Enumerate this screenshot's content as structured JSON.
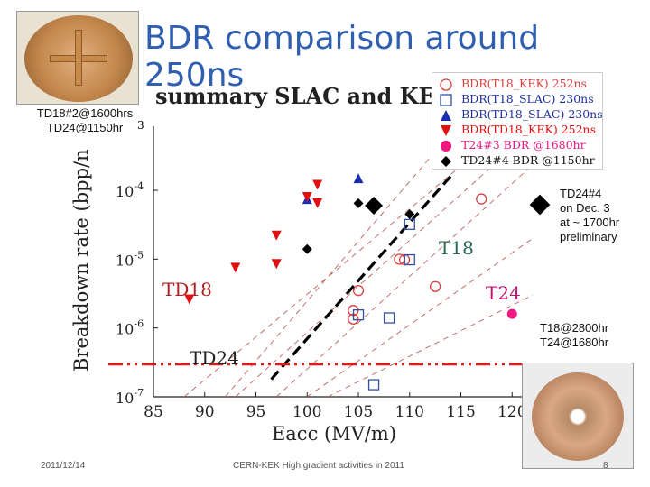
{
  "slide": {
    "title": "BDR comparison around 250ns",
    "chart_heading": "summary SLAC and KEK",
    "heading_fragment": "3",
    "note_left_line1": "TD18#2@1600hrs",
    "note_left_line2": "TD24@1150hr",
    "note_right": [
      "TD24#4",
      "on Dec. 3",
      "at ~ 1700hr",
      "preliminary"
    ],
    "note_bottom_right": [
      "T18@2800hr",
      "T24@1680hr"
    ],
    "footer_date": "2011/12/14",
    "footer_center": "CERN-KEK High gradient activities in 2011",
    "page_number": "8",
    "colors": {
      "title": "#2f5fae",
      "kek_t18": "#d84040",
      "slac_t18": "#3050a0",
      "slac_td18": "#1a2fb0",
      "kek_td18": "#e01010",
      "t24": "#f01880",
      "td24": "#000000",
      "trend": "#c06060",
      "t18_label": "#2a6a50",
      "td18_label": "#b02020",
      "t24_label": "#c01070"
    }
  },
  "chart_data": {
    "type": "scatter",
    "xlabel": "Eacc (MV/m)",
    "ylabel": "Breakdown rate (bpp/n",
    "xlim": [
      85,
      122
    ],
    "ylim_log10": [
      -7,
      -3.2
    ],
    "y_scale": "log",
    "x_ticks": [
      "85",
      "90",
      "95",
      "100",
      "105",
      "110",
      "115",
      "120",
      "1"
    ],
    "y_tick_labels": [
      {
        "base": "10",
        "exp": "-4",
        "log": -4
      },
      {
        "base": "10",
        "exp": "-5",
        "log": -5
      },
      {
        "base": "10",
        "exp": "-6",
        "log": -6
      },
      {
        "base": "10",
        "exp": "-7",
        "log": -7
      }
    ],
    "annotations": {
      "t18": "T18",
      "td18": "TD18",
      "t24": "T24",
      "td24": "TD24"
    },
    "legend_position": "top-right",
    "series": [
      {
        "key": "kek_t18",
        "name": "BDR(T18_KEK) 252ns",
        "marker": "circle-open",
        "points": [
          [
            104.5,
            1.35e-06
          ],
          [
            104.5,
            1.8e-06
          ],
          [
            105,
            3.5e-06
          ],
          [
            109,
            1e-05
          ],
          [
            109.5,
            9.8e-06
          ],
          [
            112.5,
            4e-06
          ],
          [
            117,
            7.5e-05
          ]
        ]
      },
      {
        "key": "slac_t18",
        "name": "BDR(T18_SLAC) 230ns",
        "marker": "square-open",
        "points": [
          [
            105,
            1.55e-06
          ],
          [
            106.5,
            1.5e-07
          ],
          [
            108,
            1.4e-06
          ],
          [
            110,
            9.8e-06
          ],
          [
            110,
            3.2e-05
          ]
        ]
      },
      {
        "key": "slac_td18",
        "name": "BDR(TD18_SLAC) 230ns",
        "marker": "triangle-up",
        "points": [
          [
            100,
            7.5e-05
          ],
          [
            105,
            0.00015
          ]
        ]
      },
      {
        "key": "kek_td18",
        "name": "BDR(TD18_KEK) 252ns",
        "marker": "triangle-down",
        "points": [
          [
            88.5,
            2.6e-06
          ],
          [
            93,
            7.5e-06
          ],
          [
            97,
            2.2e-05
          ],
          [
            97,
            8.5e-06
          ],
          [
            100,
            8e-05
          ],
          [
            101,
            0.00012
          ],
          [
            101,
            6.5e-05
          ]
        ]
      },
      {
        "key": "t24",
        "name": "T24#3 BDR @1680hr",
        "marker": "circle-filled",
        "points": [
          [
            120,
            1.6e-06
          ]
        ]
      },
      {
        "key": "td24",
        "name": "TD24#4 BDR @1150hr",
        "marker": "diamond",
        "points": [
          [
            100,
            1.4e-05
          ],
          [
            105,
            6.5e-05
          ],
          [
            110,
            4.5e-05
          ]
        ]
      }
    ],
    "trend_lines_dashed": [
      [
        [
          88,
          1e-07
        ],
        [
          116,
          0.0003
        ]
      ],
      [
        [
          93,
          1e-07
        ],
        [
          119,
          0.0003
        ]
      ],
      [
        [
          97,
          1e-07
        ],
        [
          121.5,
          0.0002
        ]
      ],
      [
        [
          100,
          1e-07
        ],
        [
          122,
          2e-05
        ]
      ],
      [
        [
          102,
          1e-07
        ],
        [
          122,
          3e-06
        ]
      ],
      [
        [
          92,
          1e-07
        ],
        [
          112,
          0.0003
        ]
      ]
    ],
    "trend_line_bold_dashed": [
      [
        96.5,
        1.8e-07
      ],
      [
        114,
        0.00016
      ]
    ],
    "bdr_limit_line": {
      "y": 3e-07
    }
  }
}
